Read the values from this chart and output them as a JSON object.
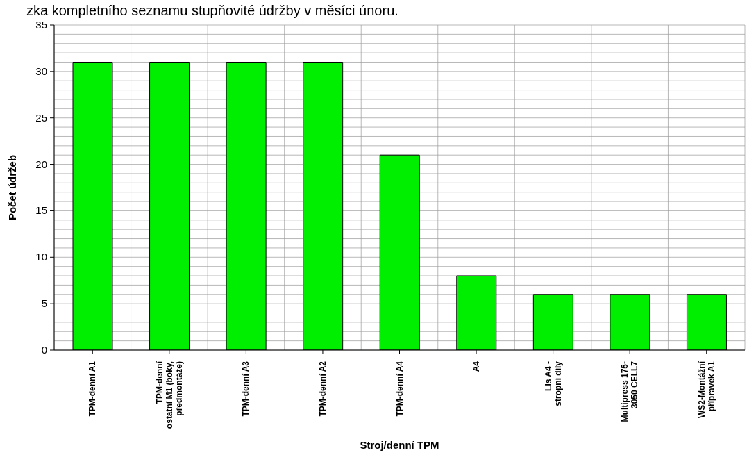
{
  "chart_data": {
    "type": "bar",
    "title": "zka kompletního seznamu stupňovité údržby v měsíci únoru.",
    "xlabel": "Stroj/denní TPM",
    "ylabel": "Počet údržeb",
    "categories": [
      "TPM-denní A1",
      "TPM-denní\nostatní M1 (boky,\npředmontáže)",
      "TPM-denní A3",
      "TPM-denní A2",
      "TPM-denní A4",
      "A4",
      "Lis A4 -\nstropní díly",
      "Multipress 175-\n3050 CELL7",
      "WS2-Montážní\npřípravek A1"
    ],
    "values": [
      31,
      31,
      31,
      31,
      21,
      8,
      6,
      6,
      6
    ],
    "color": "#00ee00",
    "ylim": [
      0,
      35
    ],
    "yticks": [
      0,
      {
        "value": 1,
        "label": null
      },
      {
        "value": 2,
        "label": null
      },
      {
        "value": 3,
        "label": null
      },
      {
        "value": 4,
        "label": null
      },
      5,
      {
        "value": 6,
        "label": null
      },
      {
        "value": 7,
        "label": null
      },
      {
        "value": 8,
        "label": null
      },
      {
        "value": 9,
        "label": null
      },
      10,
      {
        "value": 11,
        "label": null
      },
      {
        "value": 12,
        "label": null
      },
      {
        "value": 13,
        "label": null
      },
      {
        "value": 14,
        "label": null
      },
      15,
      {
        "value": 16,
        "label": null
      },
      {
        "value": 17,
        "label": null
      },
      {
        "value": 18,
        "label": null
      },
      {
        "value": 19,
        "label": null
      },
      20,
      {
        "value": 21,
        "label": null
      },
      {
        "value": 22,
        "label": null
      },
      {
        "value": 23,
        "label": null
      },
      {
        "value": 24,
        "label": null
      },
      25,
      {
        "value": 26,
        "label": null
      },
      {
        "value": 27,
        "label": null
      },
      {
        "value": 28,
        "label": null
      },
      {
        "value": 29,
        "label": null
      },
      30,
      {
        "value": 31,
        "label": null
      },
      {
        "value": 32,
        "label": null
      },
      {
        "value": 33,
        "label": null
      },
      {
        "value": 34,
        "label": null
      },
      35
    ],
    "grid": true
  }
}
